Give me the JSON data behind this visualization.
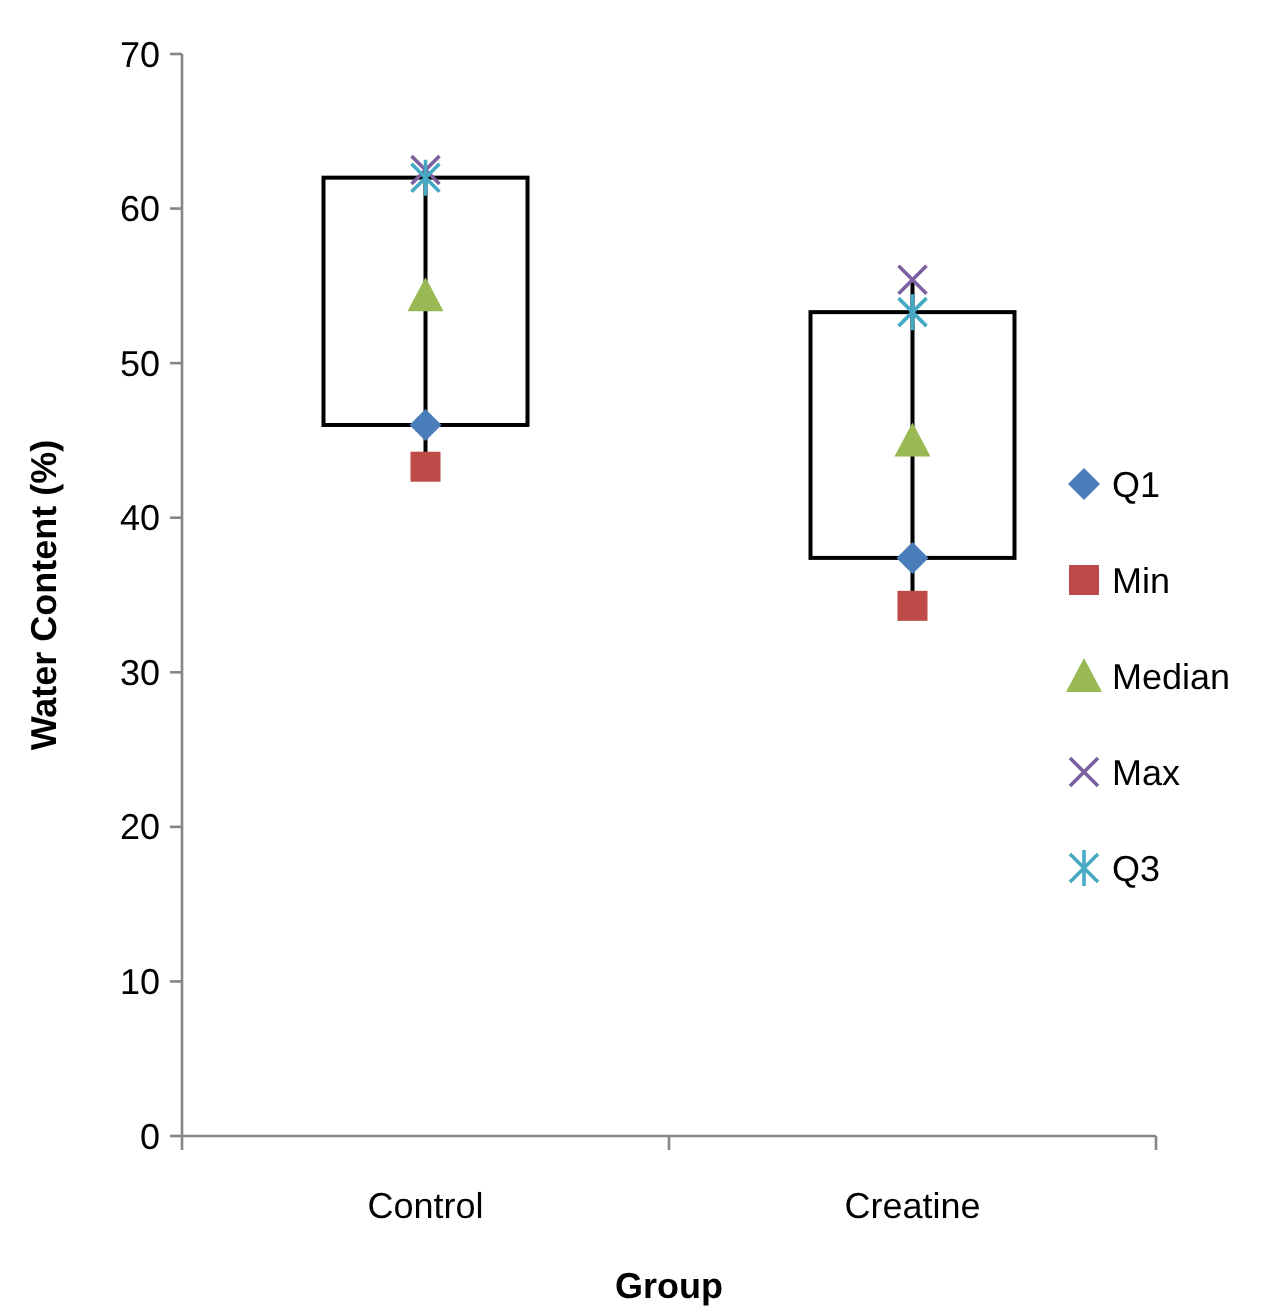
{
  "chart_data": {
    "type": "box",
    "xlabel": "Group",
    "ylabel": "Water Content (%)",
    "categories": [
      "Control",
      "Creatine"
    ],
    "ylim": [
      0,
      70
    ],
    "yticks": [
      0,
      10,
      20,
      30,
      40,
      50,
      60,
      70
    ],
    "legend": "right",
    "boxes": [
      {
        "low": 43.3,
        "q1": 46,
        "q3": 62,
        "high": 62.5
      },
      {
        "low": 34.3,
        "q1": 37.4,
        "q3": 53.3,
        "high": 55.4
      }
    ],
    "series": [
      {
        "name": "Q1",
        "type": "scatter",
        "marker": "diamond",
        "color": "#4a7ebb",
        "x": [
          "Control",
          "Creatine"
        ],
        "values": [
          46,
          37.4
        ]
      },
      {
        "name": "Min",
        "type": "scatter",
        "marker": "square",
        "color": "#be4b48",
        "x": [
          "Control",
          "Creatine"
        ],
        "values": [
          43.3,
          34.3
        ]
      },
      {
        "name": "Median",
        "type": "scatter",
        "marker": "triangle",
        "color": "#98b954",
        "x": [
          "Control",
          "Creatine"
        ],
        "values": [
          54.4,
          45
        ]
      },
      {
        "name": "Max",
        "type": "scatter",
        "marker": "cross",
        "color": "#7d60a0",
        "x": [
          "Control",
          "Creatine"
        ],
        "values": [
          62.5,
          55.4
        ]
      },
      {
        "name": "Q3",
        "type": "scatter",
        "color": "#46aac5",
        "x": [
          "Control",
          "Creatine"
        ],
        "values": [
          62,
          53.3
        ]
      }
    ]
  }
}
